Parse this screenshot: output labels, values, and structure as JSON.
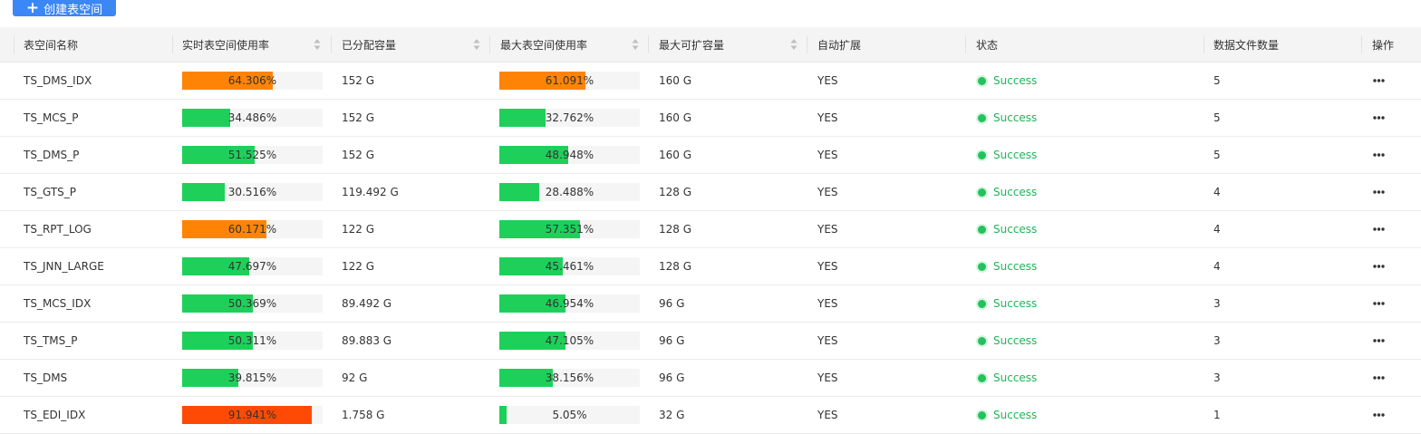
{
  "toolbar": {
    "create_label": "创建表空间"
  },
  "colors": {
    "green": "#1ed05a",
    "orange": "#ff8406",
    "red": "#ff4a06",
    "status_green": "#22b35a"
  },
  "table": {
    "columns": [
      {
        "key": "name",
        "label": "表空间名称",
        "sortable": false
      },
      {
        "key": "realtime_usage",
        "label": "实时表空间使用率",
        "sortable": true
      },
      {
        "key": "allocated",
        "label": "已分配容量",
        "sortable": true
      },
      {
        "key": "max_usage",
        "label": "最大表空间使用率",
        "sortable": true
      },
      {
        "key": "max_capacity",
        "label": "最大可扩容量",
        "sortable": true
      },
      {
        "key": "autoextend",
        "label": "自动扩展",
        "sortable": false
      },
      {
        "key": "status",
        "label": "状态",
        "sortable": false
      },
      {
        "key": "datafile_count",
        "label": "数据文件数量",
        "sortable": false
      },
      {
        "key": "actions",
        "label": "操作",
        "sortable": false
      }
    ],
    "rows": [
      {
        "name": "TS_DMS_IDX",
        "realtime_usage": "64.306%",
        "realtime_pct": 64.306,
        "realtime_color": "orange",
        "allocated": "152 G",
        "max_usage": "61.091%",
        "max_pct": 61.091,
        "max_color": "orange",
        "max_capacity": "160 G",
        "autoextend": "YES",
        "status": "Success",
        "datafile_count": "5"
      },
      {
        "name": "TS_MCS_P",
        "realtime_usage": "34.486%",
        "realtime_pct": 34.486,
        "realtime_color": "green",
        "allocated": "152 G",
        "max_usage": "32.762%",
        "max_pct": 32.762,
        "max_color": "green",
        "max_capacity": "160 G",
        "autoextend": "YES",
        "status": "Success",
        "datafile_count": "5"
      },
      {
        "name": "TS_DMS_P",
        "realtime_usage": "51.525%",
        "realtime_pct": 51.525,
        "realtime_color": "green",
        "allocated": "152 G",
        "max_usage": "48.948%",
        "max_pct": 48.948,
        "max_color": "green",
        "max_capacity": "160 G",
        "autoextend": "YES",
        "status": "Success",
        "datafile_count": "5"
      },
      {
        "name": "TS_GTS_P",
        "realtime_usage": "30.516%",
        "realtime_pct": 30.516,
        "realtime_color": "green",
        "allocated": "119.492 G",
        "max_usage": "28.488%",
        "max_pct": 28.488,
        "max_color": "green",
        "max_capacity": "128 G",
        "autoextend": "YES",
        "status": "Success",
        "datafile_count": "4"
      },
      {
        "name": "TS_RPT_LOG",
        "realtime_usage": "60.171%",
        "realtime_pct": 60.171,
        "realtime_color": "orange",
        "allocated": "122 G",
        "max_usage": "57.351%",
        "max_pct": 57.351,
        "max_color": "green",
        "max_capacity": "128 G",
        "autoextend": "YES",
        "status": "Success",
        "datafile_count": "4"
      },
      {
        "name": "TS_JNN_LARGE",
        "realtime_usage": "47.697%",
        "realtime_pct": 47.697,
        "realtime_color": "green",
        "allocated": "122 G",
        "max_usage": "45.461%",
        "max_pct": 45.461,
        "max_color": "green",
        "max_capacity": "128 G",
        "autoextend": "YES",
        "status": "Success",
        "datafile_count": "4"
      },
      {
        "name": "TS_MCS_IDX",
        "realtime_usage": "50.369%",
        "realtime_pct": 50.369,
        "realtime_color": "green",
        "allocated": "89.492 G",
        "max_usage": "46.954%",
        "max_pct": 46.954,
        "max_color": "green",
        "max_capacity": "96 G",
        "autoextend": "YES",
        "status": "Success",
        "datafile_count": "3"
      },
      {
        "name": "TS_TMS_P",
        "realtime_usage": "50.311%",
        "realtime_pct": 50.311,
        "realtime_color": "green",
        "allocated": "89.883 G",
        "max_usage": "47.105%",
        "max_pct": 47.105,
        "max_color": "green",
        "max_capacity": "96 G",
        "autoextend": "YES",
        "status": "Success",
        "datafile_count": "3"
      },
      {
        "name": "TS_DMS",
        "realtime_usage": "39.815%",
        "realtime_pct": 39.815,
        "realtime_color": "green",
        "allocated": "92 G",
        "max_usage": "38.156%",
        "max_pct": 38.156,
        "max_color": "green",
        "max_capacity": "96 G",
        "autoextend": "YES",
        "status": "Success",
        "datafile_count": "3"
      },
      {
        "name": "TS_EDI_IDX",
        "realtime_usage": "91.941%",
        "realtime_pct": 91.941,
        "realtime_color": "red",
        "allocated": "1.758 G",
        "max_usage": "5.05%",
        "max_pct": 5.05,
        "max_color": "green",
        "max_capacity": "32 G",
        "autoextend": "YES",
        "status": "Success",
        "datafile_count": "1"
      }
    ]
  },
  "icons": {
    "create": "plus-icon",
    "sort": "sort-caret-icon",
    "status": "success-dot-icon",
    "actions": "more-icon"
  }
}
